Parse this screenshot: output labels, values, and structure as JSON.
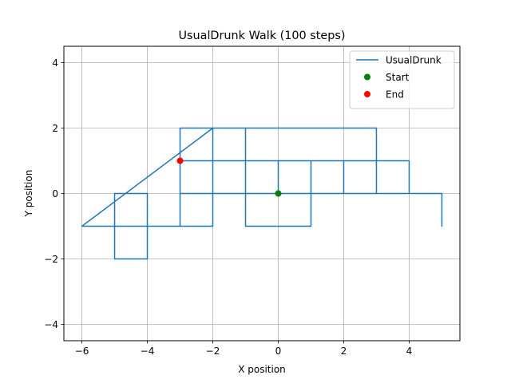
{
  "chart_data": {
    "type": "line",
    "title": "UsualDrunk Walk (100 steps)",
    "xlabel": "X position",
    "ylabel": "Y position",
    "xlim": [
      -6.55,
      5.55
    ],
    "ylim": [
      -4.5,
      4.5
    ],
    "xticks": [
      -6,
      -4,
      -2,
      0,
      2,
      4
    ],
    "yticks": [
      -4,
      -2,
      0,
      2,
      4
    ],
    "xtick_labels": [
      "−6",
      "−4",
      "−2",
      "0",
      "2",
      "4"
    ],
    "ytick_labels": [
      "−4",
      "−2",
      "0",
      "2",
      "4"
    ],
    "grid": true,
    "legend_position": "top-right",
    "series": [
      {
        "name": "UsualDrunk",
        "kind": "line",
        "color": "#1f77b4",
        "x": [
          0,
          0,
          1,
          1,
          5,
          5,
          5,
          4,
          4,
          3,
          3,
          2,
          2,
          1,
          0,
          -1,
          -1,
          1,
          1,
          -3,
          -3,
          -2,
          -2,
          -6,
          -4,
          -4,
          -5,
          -5,
          -4,
          -4,
          -3,
          -3,
          -3,
          -1,
          -1,
          -2,
          -2,
          0,
          3,
          3,
          -2,
          -2,
          -3,
          -3
        ],
        "y": [
          0,
          1,
          1,
          0,
          0,
          -1,
          0,
          0,
          1,
          1,
          0,
          0,
          1,
          1,
          1,
          1,
          -1,
          -1,
          0,
          0,
          -1,
          -1,
          2,
          -1,
          -1,
          0,
          0,
          -2,
          -2,
          -1,
          -1,
          1,
          2,
          2,
          0,
          0,
          2,
          2,
          2,
          1,
          1,
          1,
          1,
          1
        ]
      },
      {
        "name": "Start",
        "kind": "scatter",
        "color": "#008000",
        "x": [
          0
        ],
        "y": [
          0
        ]
      },
      {
        "name": "End",
        "kind": "scatter",
        "color": "#ff0000",
        "x": [
          -3
        ],
        "y": [
          1
        ]
      }
    ]
  }
}
